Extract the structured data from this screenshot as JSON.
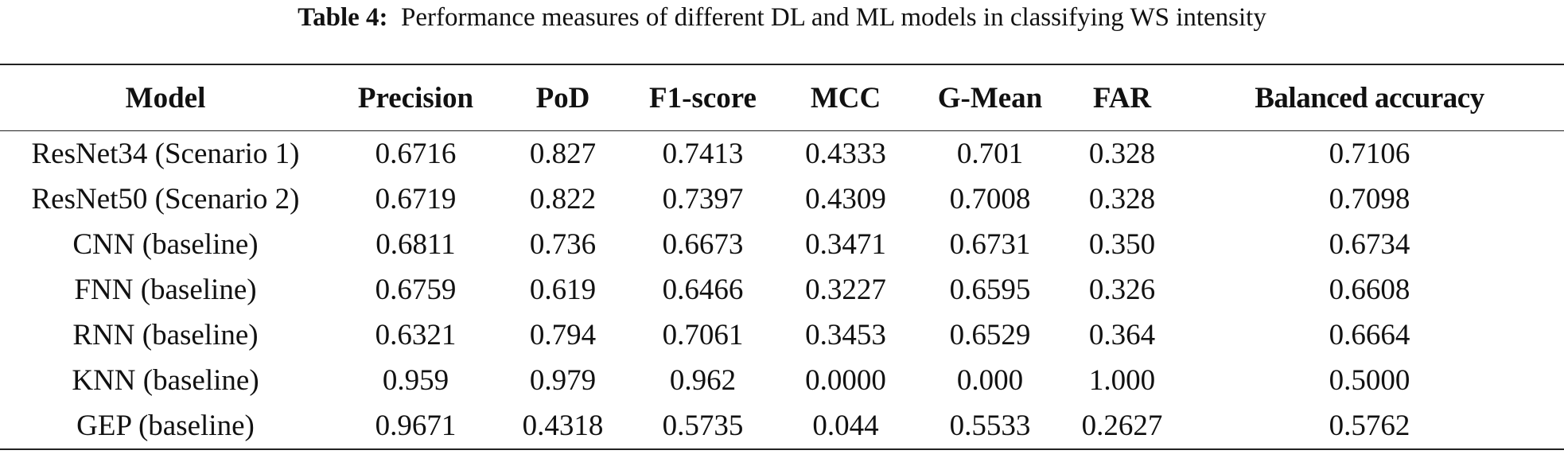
{
  "caption": {
    "label": "Table 4:",
    "text": "Performance measures of different DL and ML models in classifying WS intensity"
  },
  "table": {
    "headers": [
      "Model",
      "Precision",
      "PoD",
      "F1-score",
      "MCC",
      "G-Mean",
      "FAR",
      "Balanced accuracy"
    ],
    "rows": [
      [
        "ResNet34 (Scenario 1)",
        "0.6716",
        "0.827",
        "0.7413",
        "0.4333",
        "0.701",
        "0.328",
        "0.7106"
      ],
      [
        "ResNet50 (Scenario 2)",
        "0.6719",
        "0.822",
        "0.7397",
        "0.4309",
        "0.7008",
        "0.328",
        "0.7098"
      ],
      [
        "CNN (baseline)",
        "0.6811",
        "0.736",
        "0.6673",
        "0.3471",
        "0.6731",
        "0.350",
        "0.6734"
      ],
      [
        "FNN (baseline)",
        "0.6759",
        "0.619",
        "0.6466",
        "0.3227",
        "0.6595",
        "0.326",
        "0.6608"
      ],
      [
        "RNN (baseline)",
        "0.6321",
        "0.794",
        "0.7061",
        "0.3453",
        "0.6529",
        "0.364",
        "0.6664"
      ],
      [
        "KNN (baseline)",
        "0.959",
        "0.979",
        "0.962",
        "0.0000",
        "0.000",
        "1.000",
        "0.5000"
      ],
      [
        "GEP (baseline)",
        "0.9671",
        "0.4318",
        "0.5735",
        "0.044",
        "0.5533",
        "0.2627",
        "0.5762"
      ]
    ]
  }
}
